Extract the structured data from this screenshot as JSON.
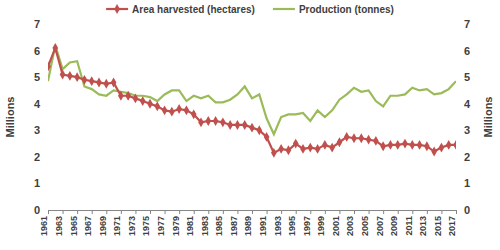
{
  "chart_data": {
    "type": "line",
    "x": [
      1961,
      1962,
      1963,
      1964,
      1965,
      1966,
      1967,
      1968,
      1969,
      1970,
      1971,
      1972,
      1973,
      1974,
      1975,
      1976,
      1977,
      1978,
      1979,
      1980,
      1981,
      1982,
      1983,
      1984,
      1985,
      1986,
      1987,
      1988,
      1989,
      1990,
      1991,
      1992,
      1993,
      1994,
      1995,
      1996,
      1997,
      1998,
      1999,
      2000,
      2001,
      2002,
      2003,
      2004,
      2005,
      2006,
      2007,
      2008,
      2009,
      2010,
      2011,
      2012,
      2013,
      2014,
      2015,
      2016,
      2017
    ],
    "series": [
      {
        "name": "Area harvested (hectares)",
        "color": "#c0504d",
        "marker": "diamond",
        "values": [
          5.4,
          6.1,
          5.1,
          5.05,
          5.0,
          4.9,
          4.85,
          4.8,
          4.75,
          4.8,
          4.3,
          4.3,
          4.2,
          4.1,
          4.0,
          3.9,
          3.75,
          3.7,
          3.8,
          3.75,
          3.6,
          3.3,
          3.35,
          3.35,
          3.3,
          3.2,
          3.2,
          3.2,
          3.1,
          3.0,
          2.75,
          2.15,
          2.3,
          2.25,
          2.5,
          2.3,
          2.35,
          2.3,
          2.45,
          2.35,
          2.55,
          2.75,
          2.7,
          2.7,
          2.65,
          2.6,
          2.4,
          2.45,
          2.45,
          2.5,
          2.45,
          2.45,
          2.4,
          2.2,
          2.35,
          2.45,
          2.45
        ]
      },
      {
        "name": "Production (tonnes)",
        "color": "#9bbb59",
        "marker": "none",
        "values": [
          4.85,
          6.2,
          5.3,
          5.55,
          5.6,
          4.65,
          4.55,
          4.35,
          4.3,
          4.5,
          4.45,
          4.4,
          4.3,
          4.3,
          4.25,
          4.1,
          4.35,
          4.5,
          4.5,
          4.1,
          4.3,
          4.2,
          4.3,
          4.05,
          4.05,
          4.15,
          4.35,
          4.65,
          4.2,
          4.35,
          3.45,
          2.85,
          3.5,
          3.6,
          3.6,
          3.65,
          3.35,
          3.75,
          3.5,
          3.75,
          4.15,
          4.35,
          4.6,
          4.45,
          4.5,
          4.1,
          3.9,
          4.3,
          4.3,
          4.35,
          4.6,
          4.5,
          4.55,
          4.35,
          4.4,
          4.55,
          4.85
        ]
      }
    ],
    "xlim": [
      1961,
      2017
    ],
    "xticks": [
      1961,
      1963,
      1965,
      1967,
      1969,
      1971,
      1973,
      1975,
      1977,
      1979,
      1981,
      1983,
      1985,
      1987,
      1989,
      1991,
      1993,
      1995,
      1997,
      1999,
      2001,
      2003,
      2005,
      2007,
      2009,
      2011,
      2013,
      2015,
      2017
    ],
    "ylim": [
      0,
      7
    ],
    "yticks": [
      0,
      1,
      2,
      3,
      4,
      5,
      6,
      7
    ],
    "y2lim": [
      0,
      7
    ],
    "y2ticks": [
      0,
      1,
      2,
      3,
      4,
      5,
      6,
      7
    ],
    "y_label": "Millions",
    "y2_label": "Millions",
    "legend": "top",
    "grid": false
  }
}
